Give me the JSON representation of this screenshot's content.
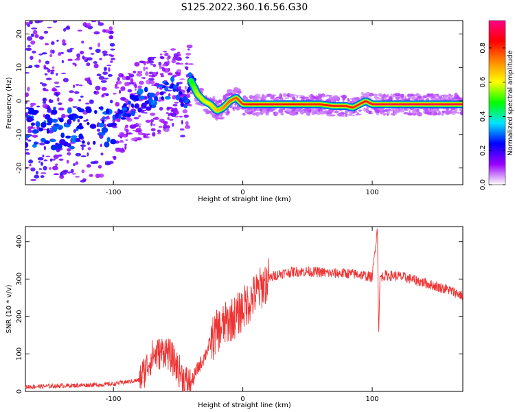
{
  "title": "S125.2022.360.16.56.G30",
  "chart_data": [
    {
      "type": "heatmap",
      "xlabel": "Height of straight line (km)",
      "ylabel": "Frequency (Hz)",
      "xlim": [
        -168,
        170
      ],
      "ylim": [
        -25,
        24
      ],
      "x_ticks": [
        -100,
        0,
        100
      ],
      "x_tick_labels": [
        "-100",
        "0",
        "100"
      ],
      "y_ticks": [
        -20,
        -10,
        0,
        10,
        20
      ],
      "y_tick_labels": [
        "-20",
        "-10",
        "0",
        "10",
        "20"
      ],
      "colorbar": {
        "label": "Normalized spectral amplitude",
        "range": [
          0,
          0.96
        ],
        "ticks": [
          0.0,
          0.2,
          0.4,
          0.6,
          0.8
        ],
        "tick_labels": [
          "0.0",
          "0.2",
          "0.4",
          "0.6",
          "0.8"
        ],
        "colors": [
          "#ffffff",
          "#9900ff",
          "#0000ff",
          "#00e5ff",
          "#00ff00",
          "#ffff00",
          "#ff8800",
          "#ff0000",
          "#ff0088"
        ]
      },
      "ridge": {
        "x": [
          -100,
          -90,
          -80,
          -70,
          -60,
          -52,
          -45,
          -40,
          -35,
          -30,
          -25,
          -20,
          -15,
          -10,
          -5,
          0,
          10,
          30,
          50,
          60,
          70,
          80,
          85,
          90,
          95,
          100,
          120,
          140,
          170
        ],
        "frequency": [
          -6,
          -2,
          0,
          1,
          3,
          5,
          -1,
          6,
          2,
          0,
          -1,
          -3,
          -2,
          0,
          1,
          -1,
          -1,
          -1,
          -1,
          -1,
          -1.5,
          -1.5,
          -2,
          -1,
          0,
          -1,
          -1,
          -1,
          -1
        ],
        "amplitude": [
          0.3,
          0.3,
          0.35,
          0.4,
          0.4,
          0.4,
          0.45,
          0.5,
          0.6,
          0.6,
          0.65,
          0.7,
          0.75,
          0.8,
          0.8,
          0.85,
          0.9,
          0.9,
          0.85,
          0.85,
          0.9,
          0.9,
          0.85,
          0.85,
          0.9,
          0.95,
          0.95,
          0.95,
          0.95
        ]
      },
      "grid": false
    },
    {
      "type": "line",
      "xlabel": "Height of straight line (km)",
      "ylabel": "SNR (10 * v/v)",
      "xlim": [
        -168,
        170
      ],
      "ylim": [
        0,
        440
      ],
      "x_ticks": [
        -100,
        0,
        100
      ],
      "x_tick_labels": [
        "-100",
        "0",
        "100"
      ],
      "y_ticks": [
        0,
        100,
        200,
        300,
        400
      ],
      "y_tick_labels": [
        "0",
        "100",
        "200",
        "300",
        "400"
      ],
      "color": "#ee3333",
      "series": [
        {
          "x": [
            -168,
            -150,
            -130,
            -110,
            -100,
            -90,
            -80,
            -75,
            -70,
            -65,
            -60,
            -55,
            -50,
            -45,
            -40,
            -35,
            -30,
            -25,
            -20,
            -15,
            -10,
            -5,
            0,
            5,
            10,
            15,
            20,
            25,
            30,
            40,
            50,
            60,
            70,
            80,
            90,
            100,
            104,
            105,
            106,
            110,
            120,
            130,
            140,
            150,
            160,
            170
          ],
          "y": [
            12,
            14,
            16,
            18,
            20,
            25,
            30,
            60,
            95,
            100,
            110,
            90,
            60,
            30,
            20,
            60,
            90,
            130,
            160,
            175,
            190,
            200,
            220,
            240,
            260,
            280,
            300,
            310,
            315,
            320,
            320,
            318,
            315,
            315,
            312,
            305,
            440,
            150,
            305,
            310,
            308,
            300,
            290,
            280,
            270,
            255
          ]
        }
      ],
      "grid": false
    }
  ]
}
